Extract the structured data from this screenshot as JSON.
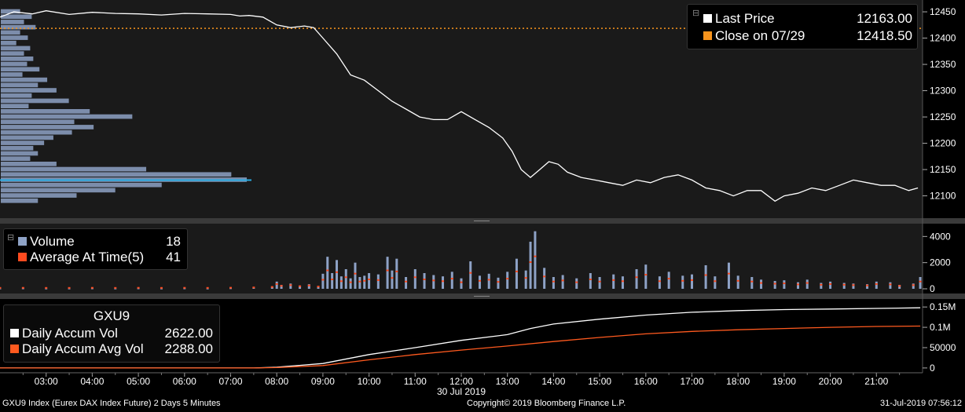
{
  "colors": {
    "price": "#ffffff",
    "close": "#f7941d",
    "profile": "#8ea2c6",
    "profile_hl": "#29abe2",
    "volume": "#8ea2c6",
    "avg": "#ff4b1f",
    "accum": "#ffffff",
    "accum_avg": "#ff5a1f"
  },
  "chart_data": [
    {
      "type": "line",
      "name": "price-panel",
      "series": [
        {
          "name": "Last Price",
          "value": "12163.00",
          "x_hours": [
            2.0,
            2.3,
            2.7,
            3.0,
            3.5,
            4.0,
            4.5,
            5.0,
            5.5,
            6.0,
            6.5,
            7.0,
            7.2,
            7.4,
            7.7,
            8.0,
            8.3,
            8.6,
            8.8,
            9.0,
            9.3,
            9.6,
            9.9,
            10.2,
            10.5,
            10.8,
            11.1,
            11.4,
            11.7,
            12.0,
            12.3,
            12.6,
            12.9,
            13.1,
            13.3,
            13.5,
            13.7,
            13.9,
            14.1,
            14.3,
            14.6,
            14.9,
            15.2,
            15.5,
            15.8,
            16.1,
            16.4,
            16.7,
            17.0,
            17.3,
            17.6,
            17.9,
            18.2,
            18.5,
            18.8,
            19.0,
            19.3,
            19.6,
            19.9,
            20.2,
            20.5,
            20.8,
            21.1,
            21.4,
            21.7,
            21.9
          ],
          "y": [
            12440,
            12450,
            12446,
            12452,
            12445,
            12449,
            12447,
            12446,
            12444,
            12447,
            12446,
            12445,
            12442,
            12443,
            12440,
            12425,
            12420,
            12423,
            12420,
            12400,
            12370,
            12330,
            12320,
            12300,
            12280,
            12265,
            12250,
            12245,
            12245,
            12260,
            12245,
            12230,
            12210,
            12185,
            12150,
            12135,
            12150,
            12165,
            12160,
            12145,
            12135,
            12130,
            12125,
            12120,
            12130,
            12125,
            12135,
            12140,
            12130,
            12115,
            12110,
            12100,
            12110,
            12110,
            12090,
            12100,
            12105,
            12115,
            12110,
            12120,
            12130,
            12125,
            12120,
            12120,
            12110,
            12115
          ]
        },
        {
          "name": "Close on 07/29",
          "value": "12418.50",
          "y": 12418.5
        }
      ],
      "volume_profile": {
        "prices": [
          12450,
          12440,
          12430,
          12420,
          12410,
          12400,
          12390,
          12380,
          12370,
          12360,
          12350,
          12340,
          12330,
          12320,
          12310,
          12300,
          12290,
          12280,
          12270,
          12260,
          12250,
          12240,
          12230,
          12220,
          12210,
          12200,
          12190,
          12180,
          12170,
          12160,
          12150,
          12140,
          12130,
          12120,
          12110,
          12100,
          12090
        ],
        "volumes": [
          25,
          40,
          30,
          45,
          25,
          35,
          20,
          38,
          30,
          42,
          34,
          50,
          28,
          60,
          48,
          72,
          40,
          88,
          36,
          115,
          170,
          95,
          120,
          92,
          68,
          56,
          42,
          48,
          38,
          72,
          188,
          298,
          318,
          208,
          148,
          98,
          48
        ],
        "highlight_price": 12130
      },
      "ylim": [
        12065,
        12465
      ],
      "y_ticks": [
        12100,
        12150,
        12200,
        12250,
        12300,
        12350,
        12400,
        12450
      ]
    },
    {
      "type": "bar",
      "name": "volume-panel",
      "series": [
        {
          "name": "Volume",
          "value": "18",
          "x_hours": [
            2.0,
            2.5,
            3.0,
            3.5,
            4.0,
            4.5,
            5.0,
            5.5,
            6.0,
            6.5,
            7.0,
            7.5,
            7.9,
            8.0,
            8.1,
            8.3,
            8.5,
            8.7,
            8.9,
            9.0,
            9.1,
            9.2,
            9.3,
            9.4,
            9.5,
            9.6,
            9.7,
            9.8,
            9.9,
            10.0,
            10.2,
            10.4,
            10.5,
            10.6,
            10.8,
            11.0,
            11.2,
            11.4,
            11.6,
            11.8,
            12.0,
            12.2,
            12.4,
            12.6,
            12.8,
            13.0,
            13.2,
            13.4,
            13.5,
            13.6,
            13.8,
            14.0,
            14.2,
            14.5,
            14.8,
            15.0,
            15.3,
            15.5,
            15.8,
            16.0,
            16.3,
            16.5,
            16.8,
            17.0,
            17.3,
            17.5,
            17.8,
            18.0,
            18.3,
            18.5,
            18.8,
            19.0,
            19.3,
            19.5,
            19.8,
            20.0,
            20.3,
            20.5,
            20.8,
            21.0,
            21.3,
            21.5,
            21.8,
            21.95
          ],
          "values": [
            20,
            30,
            20,
            20,
            30,
            20,
            30,
            20,
            30,
            20,
            40,
            80,
            150,
            550,
            300,
            400,
            250,
            350,
            200,
            1150,
            2450,
            1200,
            2200,
            950,
            1500,
            800,
            2000,
            900,
            1000,
            1200,
            1100,
            2450,
            1400,
            2300,
            900,
            1500,
            1200,
            1050,
            950,
            1300,
            800,
            2100,
            1000,
            1150,
            850,
            1300,
            2300,
            1400,
            3600,
            4400,
            1600,
            900,
            1050,
            800,
            1200,
            900,
            1100,
            950,
            1500,
            1850,
            950,
            1300,
            1000,
            1100,
            1800,
            950,
            2000,
            1000,
            900,
            700,
            600,
            650,
            500,
            700,
            450,
            550,
            450,
            400,
            350,
            550,
            500,
            300,
            400,
            900
          ]
        },
        {
          "name": "Average At Time(5)",
          "value": "41"
        }
      ],
      "ylim": [
        0,
        4800
      ],
      "y_ticks": [
        0,
        2000,
        4000
      ]
    },
    {
      "type": "line",
      "name": "accum-panel",
      "title": "GXU9",
      "series": [
        {
          "name": "Daily Accum Vol",
          "value": "2622.00",
          "x_hours": [
            2.0,
            7.5,
            8.0,
            9.0,
            10.0,
            11.0,
            12.0,
            13.0,
            13.5,
            14.0,
            15.0,
            16.0,
            17.0,
            18.0,
            19.0,
            20.0,
            21.0,
            21.95
          ],
          "values": [
            0,
            0,
            2000,
            11000,
            33000,
            50000,
            68000,
            82000,
            97000,
            108000,
            120000,
            130000,
            137000,
            141000,
            143500,
            145000,
            146500,
            148000
          ]
        },
        {
          "name": "Daily Accum Avg Vol",
          "value": "2288.00",
          "x_hours": [
            2.0,
            7.5,
            8.0,
            9.0,
            10.0,
            11.0,
            12.0,
            13.0,
            14.0,
            15.0,
            16.0,
            17.0,
            18.0,
            19.0,
            20.0,
            21.0,
            21.95
          ],
          "values": [
            0,
            0,
            1000,
            6000,
            20000,
            33000,
            44000,
            54000,
            65000,
            75000,
            84000,
            90000,
            94000,
            97000,
            100000,
            102000,
            103000
          ]
        }
      ],
      "ylim": [
        -6000,
        160000
      ],
      "y_ticks_labels": [
        "0",
        "50000",
        "0.1M",
        "0.15M"
      ],
      "y_ticks_values": [
        0,
        50000,
        100000,
        150000
      ]
    }
  ],
  "x_axis": {
    "labels": [
      "03:00",
      "04:00",
      "05:00",
      "06:00",
      "07:00",
      "08:00",
      "09:00",
      "10:00",
      "11:00",
      "12:00",
      "13:00",
      "14:00",
      "15:00",
      "16:00",
      "17:00",
      "18:00",
      "19:00",
      "20:00",
      "21:00"
    ],
    "hours": [
      3,
      4,
      5,
      6,
      7,
      8,
      9,
      10,
      11,
      12,
      13,
      14,
      15,
      16,
      17,
      18,
      19,
      20,
      21
    ],
    "date_label": "30 Jul 2019",
    "range": [
      2.0,
      22.0
    ]
  },
  "price_y_labels": [
    "12100",
    "12150",
    "12200",
    "12250",
    "12300",
    "12350",
    "12400",
    "12450"
  ],
  "volume_y_labels": [
    "0",
    "2000",
    "4000"
  ],
  "legend_price": {
    "last_label": "Last Price",
    "last_value": "12163.00",
    "close_label": "Close on 07/29",
    "close_value": "12418.50"
  },
  "legend_volume": {
    "volume_label": "Volume",
    "volume_value": "18",
    "avg_label": "Average At Time(5)",
    "avg_value": "41"
  },
  "legend_accum": {
    "title": "GXU9",
    "accum_label": "Daily Accum Vol",
    "accum_value": "2622.00",
    "avg_label": "Daily Accum Avg Vol",
    "avg_value": "2288.00"
  },
  "footer": {
    "left": "GXU9 Index (Eurex DAX Index Future) 2 Days 5 Minutes",
    "center": "Copyright© 2019 Bloomberg Finance L.P.",
    "right": "31-Jul-2019 07:56:12"
  }
}
